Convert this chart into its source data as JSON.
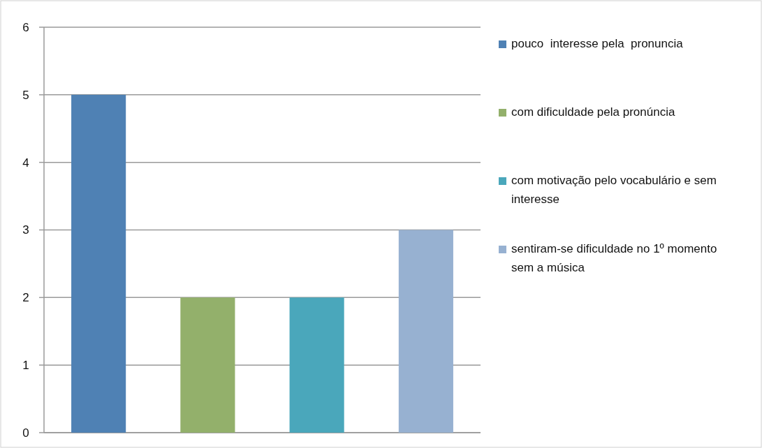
{
  "chart_data": {
    "type": "bar",
    "categories": [
      null,
      null,
      null,
      null
    ],
    "stacked": true,
    "series": [
      {
        "name": "pouco  interesse pela  pronuncia",
        "color": "#4f81b4",
        "values": [
          5,
          null,
          null,
          null
        ]
      },
      {
        "name": "com dificuldade pela pronúncia",
        "color": "#93b06b",
        "values": [
          null,
          2,
          null,
          null
        ]
      },
      {
        "name": "com motivação pelo vocabulário e sem interesse",
        "color": "#4aa7bb",
        "values": [
          null,
          null,
          2,
          null
        ]
      },
      {
        "name": "sentiram-se dificuldade no 1º momento sem a música",
        "color": "#97b1d1",
        "values": [
          null,
          null,
          null,
          3
        ]
      }
    ],
    "ylim": [
      0,
      6
    ],
    "yticks": [
      0,
      1,
      2,
      3,
      4,
      5,
      6
    ],
    "grid": "y",
    "legend": "right"
  }
}
